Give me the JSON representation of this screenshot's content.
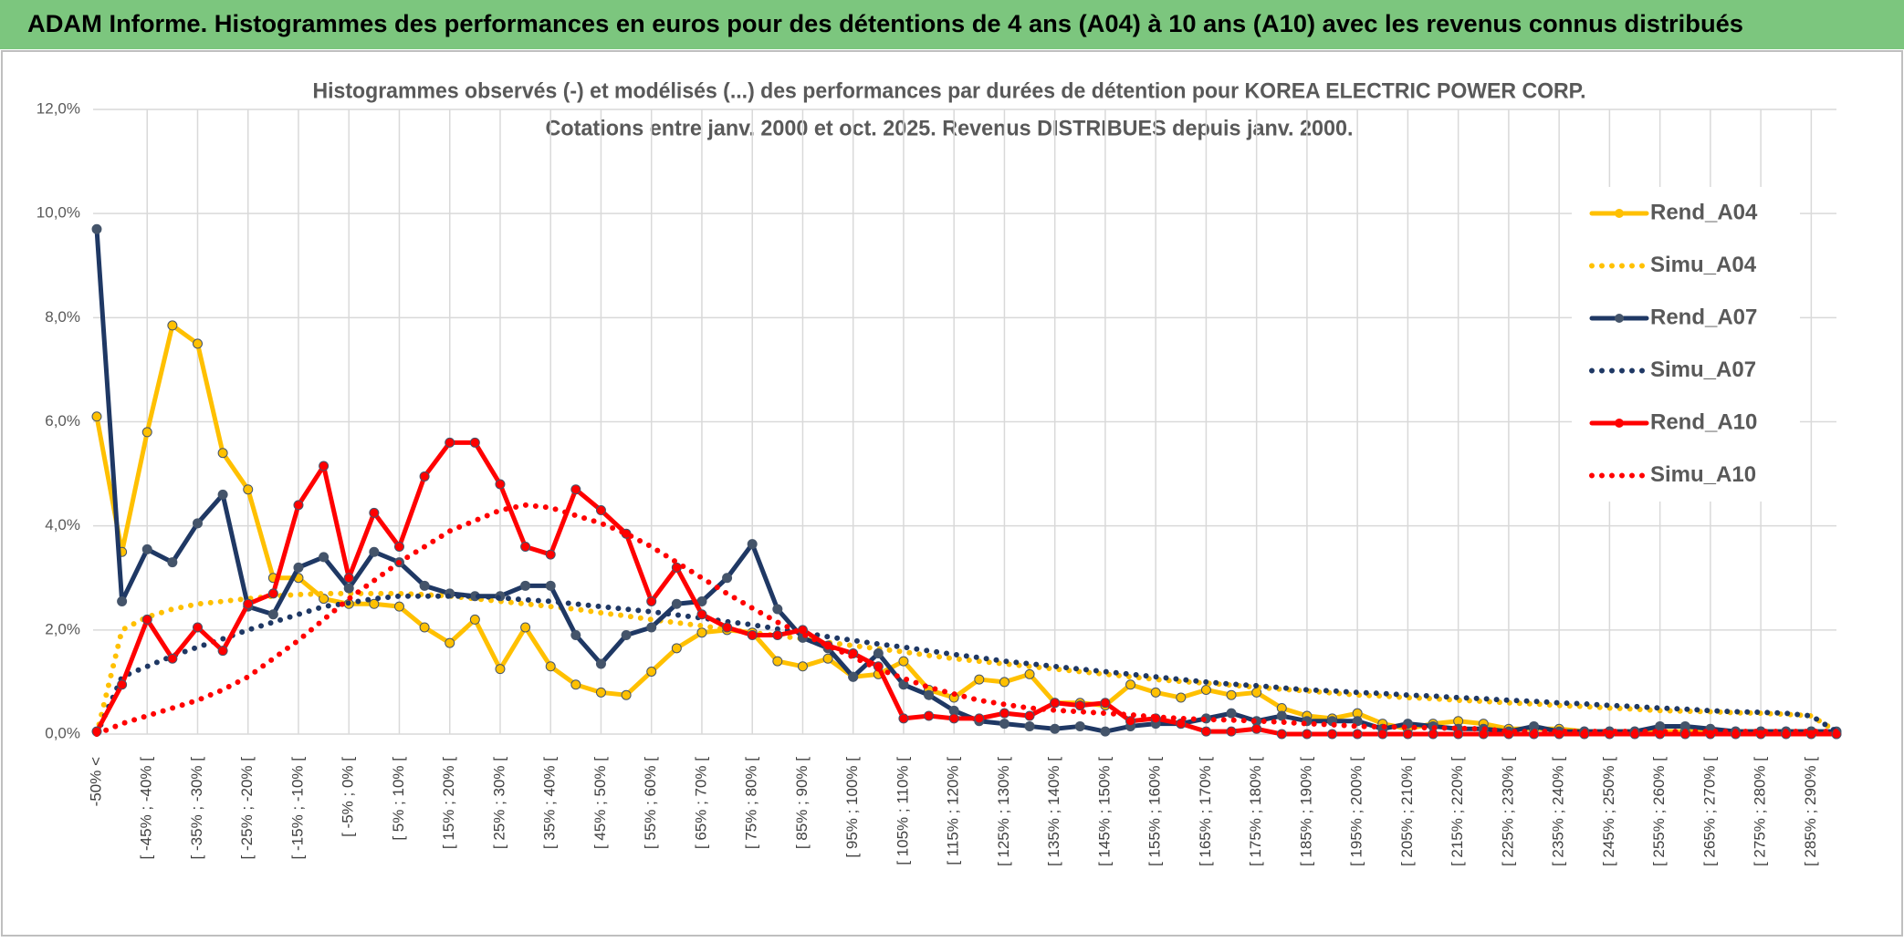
{
  "header": {
    "title": "ADAM Informe. Histogrammes des performances en euros pour des détentions de 4 ans (A04) à 10 ans (A10) avec les revenus connus distribués"
  },
  "chart_data": {
    "type": "line",
    "title": "Histogrammes observés (-) et modélisés (...) des performances par durées de détention pour KOREA ELECTRIC POWER CORP.",
    "subtitle": "Cotations entre janv. 2000 et oct. 2025. Revenus DISTRIBUES depuis janv. 2000.",
    "categories": [
      "-50% <",
      null,
      "[ -45% ; -40% [",
      null,
      "[ -35% ; -30% [",
      null,
      "[ -25% ; -20% [",
      null,
      "[ -15% ; -10% [",
      null,
      "[ -5% ; 0% [",
      null,
      "[ 5% ; 10% [",
      null,
      "[ 15% ; 20% [",
      null,
      "[ 25% ; 30% [",
      null,
      "[ 35% ; 40% [",
      null,
      "[ 45% ; 50% [",
      null,
      "[ 55% ; 60% [",
      null,
      "[ 65% ; 70% [",
      null,
      "[ 75% ; 80% [",
      null,
      "[ 85% ; 90% [",
      null,
      "[ 95% ; 100% [",
      null,
      "[ 105% ; 110% [",
      null,
      "[ 115% ; 120% [",
      null,
      "[ 125% ; 130% [",
      null,
      "[ 135% ; 140% [",
      null,
      "[ 145% ; 150% [",
      null,
      "[ 155% ; 160% [",
      null,
      "[ 165% ; 170% [",
      null,
      "[ 175% ; 180% [",
      null,
      "[ 185% ; 190% [",
      null,
      "[ 195% ; 200% [",
      null,
      "[ 205% ; 210% [",
      null,
      "[ 215% ; 220% [",
      null,
      "[ 225% ; 230% [",
      null,
      "[ 235% ; 240% [",
      null,
      "[ 245% ; 250% [",
      null,
      "[ 255% ; 260% [",
      null,
      "[ 265% ; 270% [",
      null,
      "[ 275% ; 280% [",
      null,
      "[ 285% ; 290% [",
      null
    ],
    "series": [
      {
        "name": "Rend_A04",
        "color": "#ffc000",
        "line_style": "solid",
        "marker": true,
        "values": [
          6.1,
          3.5,
          5.8,
          7.85,
          7.5,
          5.4,
          4.7,
          3.0,
          3.0,
          2.6,
          2.5,
          2.5,
          2.45,
          2.05,
          1.75,
          2.2,
          1.25,
          2.05,
          1.3,
          0.95,
          0.8,
          0.75,
          1.2,
          1.65,
          1.95,
          2.0,
          1.95,
          1.4,
          1.3,
          1.45,
          1.1,
          1.15,
          1.4,
          0.85,
          0.7,
          1.05,
          1.0,
          1.15,
          0.6,
          0.6,
          0.55,
          0.95,
          0.8,
          0.7,
          0.85,
          0.75,
          0.8,
          0.5,
          0.35,
          0.3,
          0.4,
          0.2,
          0.1,
          0.2,
          0.25,
          0.2,
          0.1,
          0.1,
          0.1,
          0.05,
          0.05,
          0.05,
          0.05,
          0.05,
          0.05,
          0.05,
          0.05,
          0.05,
          0.05,
          0
        ]
      },
      {
        "name": "Simu_A04",
        "color": "#ffc000",
        "line_style": "dotted",
        "marker": false,
        "values": [
          0,
          2.0,
          2.25,
          2.4,
          2.5,
          2.55,
          2.6,
          2.65,
          2.68,
          2.7,
          2.7,
          2.7,
          2.7,
          2.68,
          2.65,
          2.6,
          2.55,
          2.5,
          2.45,
          2.4,
          2.33,
          2.27,
          2.2,
          2.14,
          2.08,
          2.01,
          1.95,
          1.89,
          1.83,
          1.76,
          1.7,
          1.64,
          1.58,
          1.51,
          1.45,
          1.4,
          1.35,
          1.3,
          1.25,
          1.2,
          1.15,
          1.1,
          1.05,
          1.01,
          0.98,
          0.94,
          0.9,
          0.86,
          0.83,
          0.79,
          0.75,
          0.73,
          0.7,
          0.68,
          0.65,
          0.63,
          0.6,
          0.58,
          0.55,
          0.53,
          0.5,
          0.48,
          0.45,
          0.44,
          0.43,
          0.41,
          0.4,
          0.38,
          0.35,
          0.05
        ]
      },
      {
        "name": "Rend_A07",
        "color": "#1f3864",
        "line_style": "solid",
        "marker": true,
        "values": [
          9.7,
          2.55,
          3.55,
          3.3,
          4.05,
          4.6,
          2.45,
          2.3,
          3.2,
          3.4,
          2.8,
          3.5,
          3.3,
          2.85,
          2.7,
          2.65,
          2.65,
          2.85,
          2.85,
          1.9,
          1.35,
          1.9,
          2.05,
          2.5,
          2.55,
          3.0,
          3.65,
          2.4,
          1.85,
          1.65,
          1.1,
          1.55,
          0.95,
          0.75,
          0.45,
          0.25,
          0.2,
          0.15,
          0.1,
          0.15,
          0.05,
          0.15,
          0.2,
          0.2,
          0.3,
          0.4,
          0.25,
          0.35,
          0.25,
          0.25,
          0.25,
          0.1,
          0.2,
          0.15,
          0.1,
          0.1,
          0.05,
          0.15,
          0.05,
          0.05,
          0.05,
          0.05,
          0.15,
          0.15,
          0.1,
          0.05,
          0.05,
          0.05,
          0.05,
          0.05
        ]
      },
      {
        "name": "Simu_A07",
        "color": "#1f3864",
        "line_style": "dotted",
        "marker": false,
        "values": [
          0,
          1.1,
          1.3,
          1.5,
          1.67,
          1.83,
          2.0,
          2.15,
          2.3,
          2.45,
          2.52,
          2.6,
          2.65,
          2.65,
          2.65,
          2.65,
          2.62,
          2.58,
          2.55,
          2.5,
          2.45,
          2.4,
          2.35,
          2.29,
          2.23,
          2.16,
          2.1,
          2.02,
          1.95,
          1.87,
          1.8,
          1.73,
          1.67,
          1.6,
          1.53,
          1.47,
          1.4,
          1.35,
          1.3,
          1.25,
          1.2,
          1.15,
          1.1,
          1.05,
          1.0,
          0.96,
          0.93,
          0.89,
          0.85,
          0.83,
          0.8,
          0.78,
          0.75,
          0.73,
          0.7,
          0.68,
          0.65,
          0.63,
          0.6,
          0.58,
          0.55,
          0.53,
          0.5,
          0.48,
          0.45,
          0.43,
          0.42,
          0.4,
          0.35,
          0.05
        ]
      },
      {
        "name": "Rend_A10",
        "color": "#ff0000",
        "line_style": "solid",
        "marker": true,
        "values": [
          0.05,
          0.95,
          2.2,
          1.45,
          2.05,
          1.6,
          2.5,
          2.7,
          4.4,
          5.15,
          3.0,
          4.25,
          3.6,
          4.95,
          5.6,
          5.6,
          4.8,
          3.6,
          3.45,
          4.7,
          4.3,
          3.85,
          2.55,
          3.2,
          2.3,
          2.05,
          1.9,
          1.9,
          2.0,
          1.7,
          1.55,
          1.3,
          0.3,
          0.35,
          0.3,
          0.3,
          0.4,
          0.35,
          0.6,
          0.55,
          0.6,
          0.25,
          0.3,
          0.2,
          0.05,
          0.05,
          0.1,
          0,
          0,
          0,
          0,
          0,
          0,
          0,
          0,
          0,
          0,
          0,
          0,
          0,
          0,
          0,
          0,
          0,
          0,
          0,
          0,
          0,
          0,
          0
        ]
      },
      {
        "name": "Simu_A10",
        "color": "#ff0000",
        "line_style": "dotted",
        "marker": false,
        "values": [
          0,
          0.2,
          0.35,
          0.5,
          0.65,
          0.85,
          1.1,
          1.45,
          1.8,
          2.2,
          2.6,
          2.95,
          3.3,
          3.6,
          3.9,
          4.1,
          4.3,
          4.4,
          4.35,
          4.2,
          4.05,
          3.85,
          3.6,
          3.3,
          3.0,
          2.7,
          2.42,
          2.15,
          1.92,
          1.7,
          1.48,
          1.25,
          1.07,
          0.9,
          0.77,
          0.65,
          0.57,
          0.5,
          0.46,
          0.43,
          0.4,
          0.37,
          0.33,
          0.3,
          0.28,
          0.27,
          0.25,
          0.23,
          0.2,
          0.18,
          0.15,
          0.14,
          0.13,
          0.12,
          0.11,
          0.1,
          0.05,
          0.05,
          0.05,
          0.05,
          0.05,
          0.05,
          0.05,
          0.05,
          0.05,
          0.05,
          0.05,
          0.05,
          0.05,
          0.05
        ]
      }
    ],
    "ylim": [
      0,
      12
    ],
    "yticks": [
      {
        "value": 0,
        "label": "0,0%"
      },
      {
        "value": 2,
        "label": "2,0%"
      },
      {
        "value": 4,
        "label": "4,0%"
      },
      {
        "value": 6,
        "label": "6,0%"
      },
      {
        "value": 8,
        "label": "8,0%"
      },
      {
        "value": 10,
        "label": "10,0%"
      },
      {
        "value": 12,
        "label": "12,0%"
      }
    ],
    "grid": true,
    "legend": "right"
  }
}
